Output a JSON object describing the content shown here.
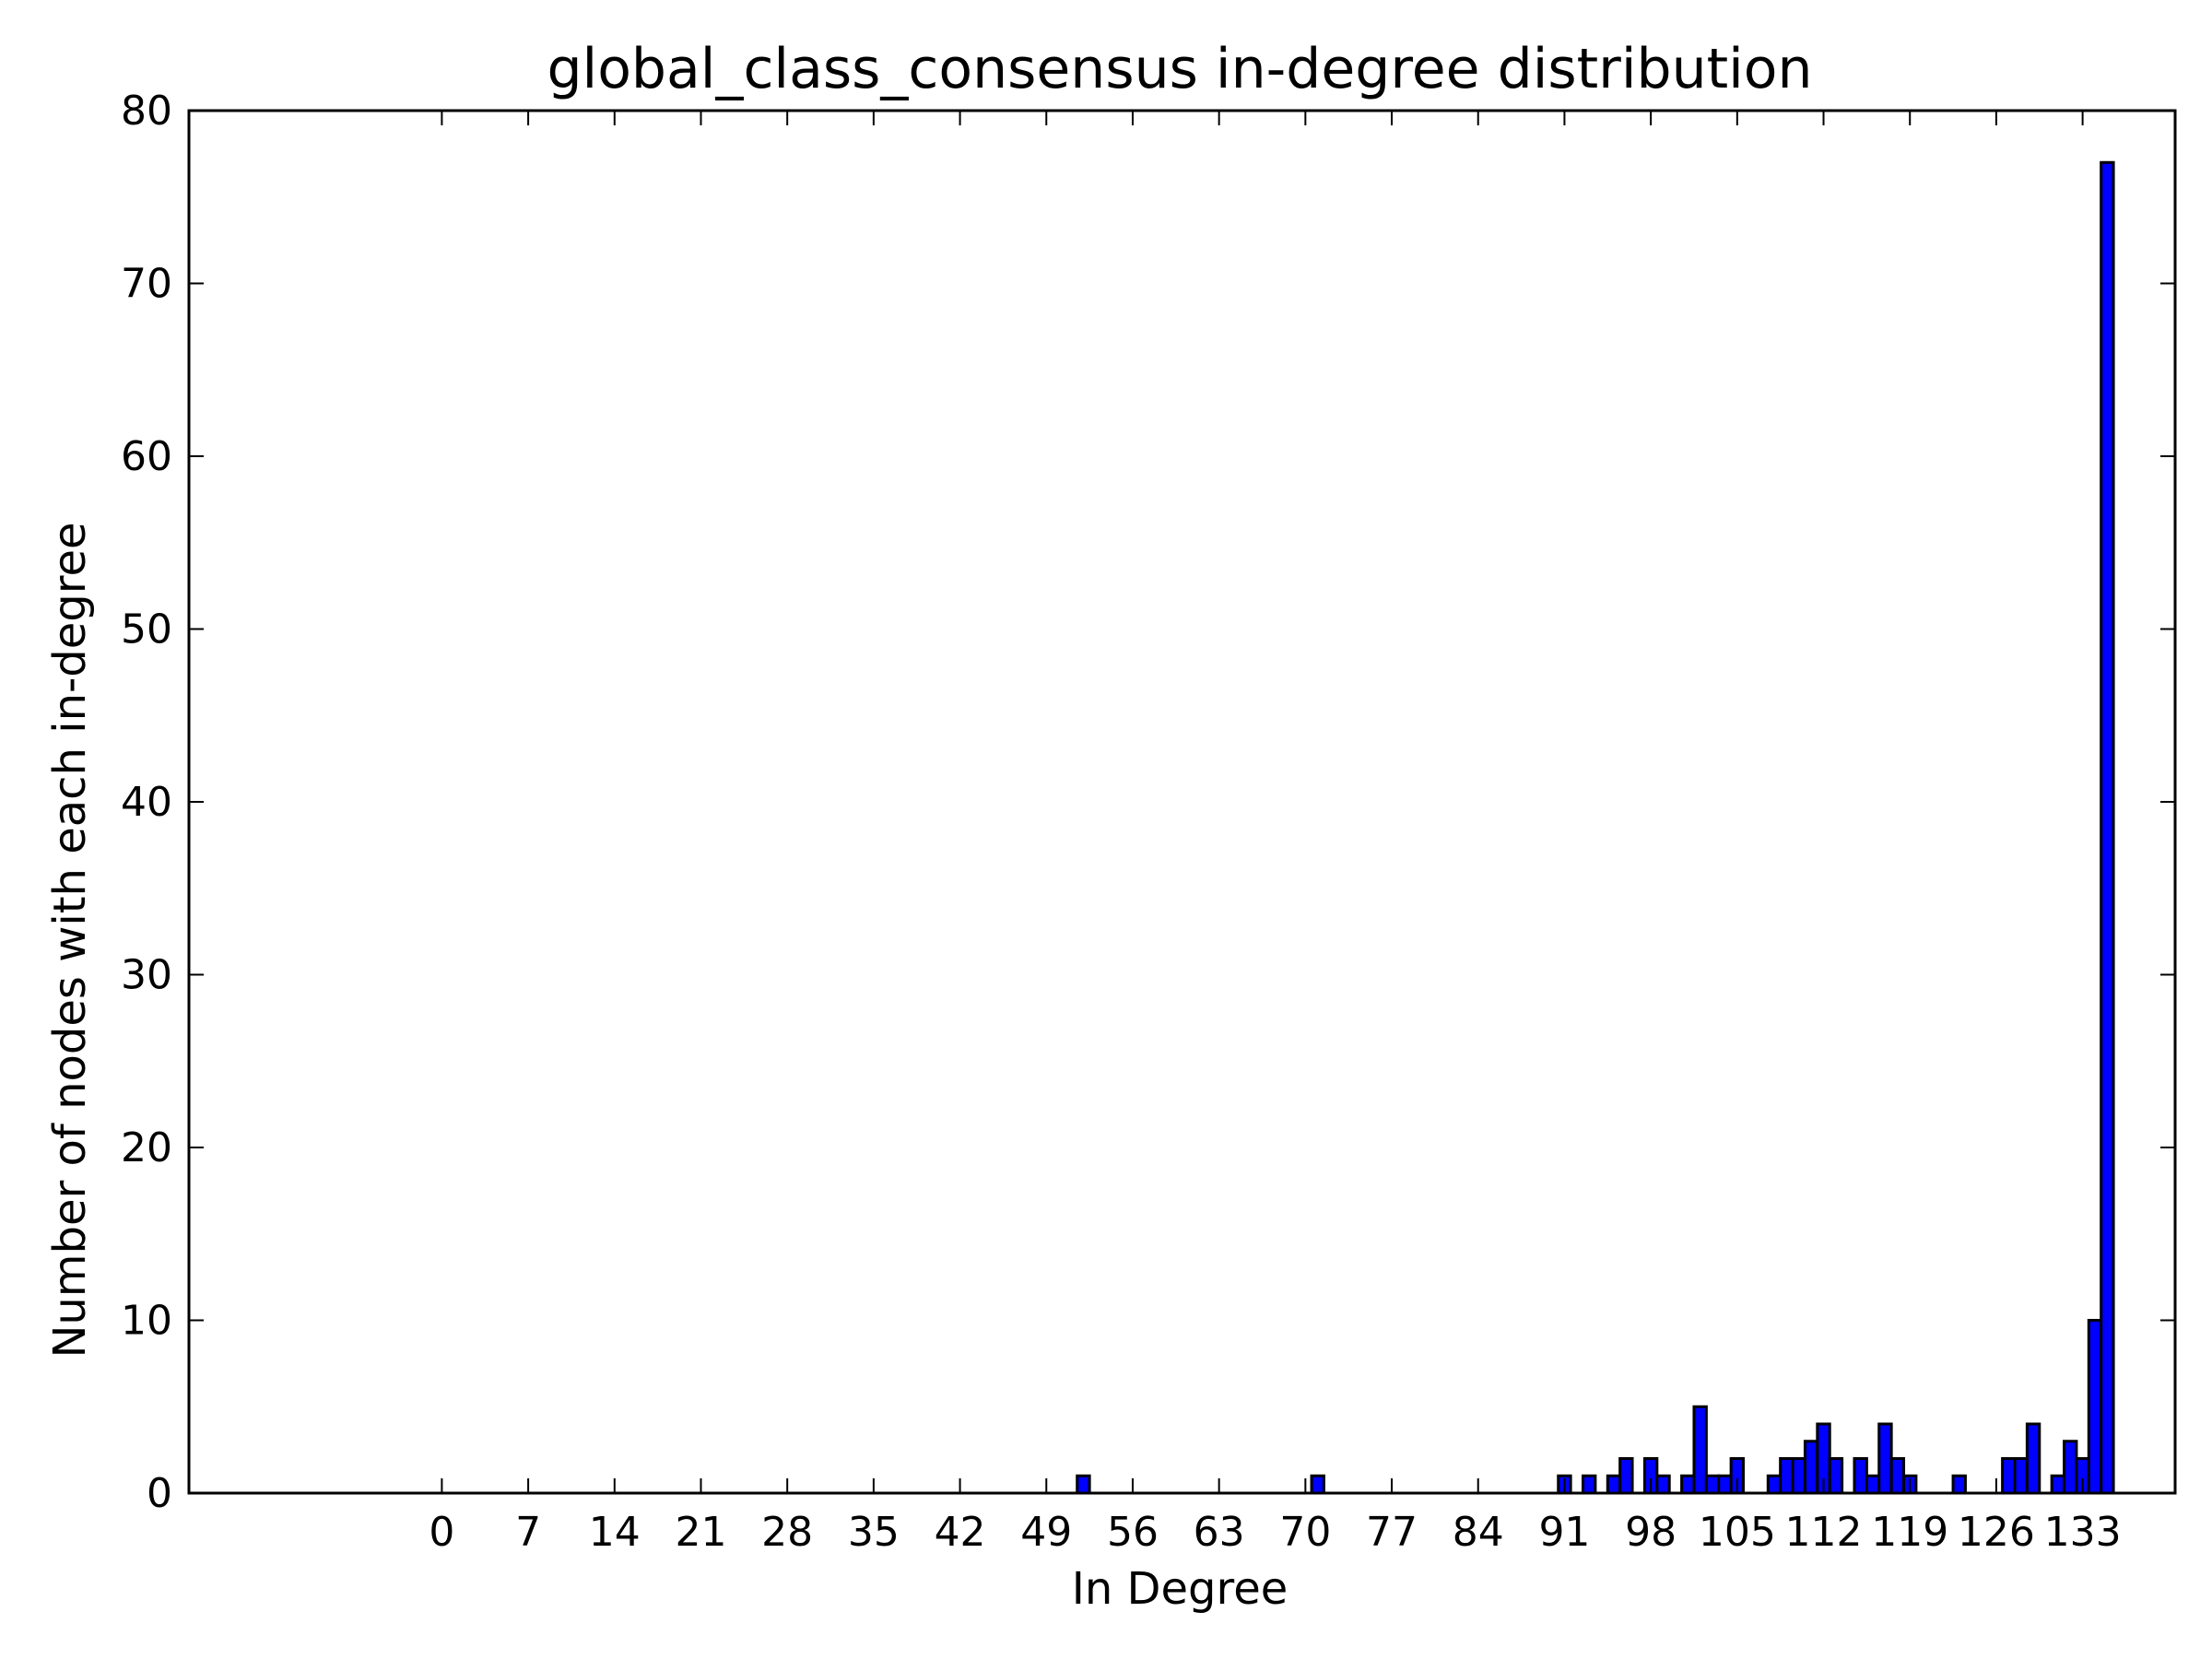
{
  "chart_data": {
    "type": "bar",
    "title": "global_class_consensus in-degree distribution",
    "xlabel": "In Degree",
    "ylabel": "Number of nodes with each in-degree",
    "xlim": [
      -20,
      141
    ],
    "ylim": [
      0,
      80
    ],
    "xticks": [
      0,
      7,
      14,
      21,
      28,
      35,
      42,
      49,
      56,
      63,
      70,
      77,
      84,
      91,
      98,
      105,
      112,
      119,
      126,
      133
    ],
    "yticks": [
      0,
      10,
      20,
      30,
      40,
      50,
      60,
      70,
      80
    ],
    "bar_width": 1,
    "bar_color": "#0000ff",
    "grid": false,
    "series": [
      {
        "x": [
          52,
          71,
          91,
          93,
          95,
          96,
          98,
          99,
          101,
          102,
          103,
          104,
          105,
          108,
          109,
          110,
          111,
          112,
          113,
          115,
          116,
          117,
          118,
          119,
          123,
          127,
          128,
          129,
          131,
          132,
          133,
          134,
          135
        ],
        "values": [
          1,
          1,
          1,
          1,
          1,
          2,
          2,
          1,
          1,
          5,
          1,
          1,
          2,
          1,
          2,
          2,
          3,
          4,
          2,
          2,
          1,
          4,
          2,
          1,
          1,
          2,
          2,
          4,
          1,
          3,
          2,
          10,
          77
        ]
      }
    ]
  }
}
